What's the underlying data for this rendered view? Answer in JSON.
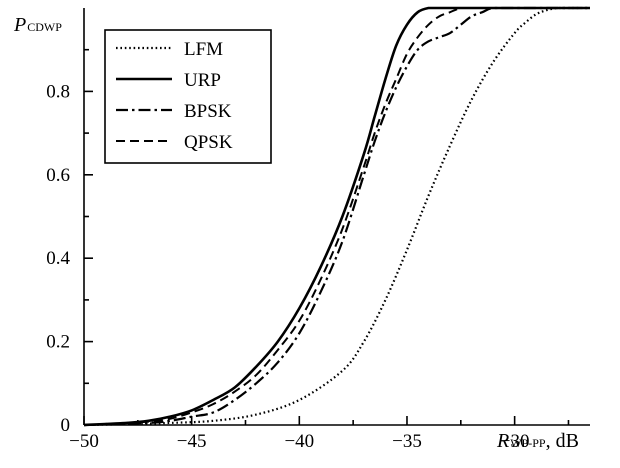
{
  "chart_data": {
    "type": "line",
    "title": "",
    "ylabel": {
      "main": "P",
      "sub": "CDWP"
    },
    "xlabel": {
      "main": "R",
      "sub": "WP-PP",
      "unit": ", dB"
    },
    "xlim": [
      -50,
      -26.5
    ],
    "ylim": [
      0,
      1.0
    ],
    "x_ticks": [
      -50,
      -45,
      -40,
      -35,
      -30
    ],
    "x_tick_labels": [
      "−50",
      "−45",
      "−40",
      "−35",
      "−30"
    ],
    "y_ticks": [
      0,
      0.2,
      0.4,
      0.6,
      0.8
    ],
    "y_tick_labels": [
      "0",
      "0.2",
      "0.4",
      "0.6",
      "0.8"
    ],
    "grid": false,
    "legend": "top-left",
    "series": [
      {
        "name": "LFM",
        "style": "dotted",
        "x": [
          -50,
          -48,
          -46,
          -44,
          -42,
          -40,
          -38,
          -37,
          -36,
          -35,
          -34,
          -33,
          -32,
          -31,
          -30,
          -29.5,
          -29,
          -28.5,
          -28,
          -27.5,
          -27,
          -26.5
        ],
        "y": [
          0,
          0.002,
          0.005,
          0.01,
          0.025,
          0.06,
          0.13,
          0.2,
          0.3,
          0.42,
          0.55,
          0.67,
          0.78,
          0.87,
          0.94,
          0.965,
          0.985,
          0.995,
          1.0,
          1.0,
          1.0,
          1.0
        ]
      },
      {
        "name": "URP",
        "style": "solid",
        "x": [
          -50,
          -48,
          -47,
          -46,
          -45,
          -44,
          -43,
          -42,
          -41,
          -40,
          -39,
          -38,
          -37,
          -36.5,
          -36,
          -35.5,
          -35,
          -34.5,
          -34,
          -33.5,
          -33,
          -32,
          -30,
          -28,
          -26.5
        ],
        "y": [
          0,
          0.005,
          0.01,
          0.02,
          0.035,
          0.06,
          0.09,
          0.14,
          0.2,
          0.28,
          0.38,
          0.5,
          0.65,
          0.74,
          0.83,
          0.91,
          0.96,
          0.99,
          1.0,
          1.0,
          1.0,
          1.0,
          1.0,
          1.0,
          1.0
        ]
      },
      {
        "name": "BPSK",
        "style": "dashdot",
        "x": [
          -50,
          -47,
          -46,
          -45,
          -44,
          -43,
          -42,
          -41,
          -40,
          -39,
          -38,
          -37,
          -36.5,
          -36,
          -35.5,
          -35,
          -34.5,
          -34,
          -33.5,
          -33,
          -32.5,
          -32,
          -31.5,
          -31,
          -30,
          -28,
          -26.5
        ],
        "y": [
          0,
          0.005,
          0.01,
          0.02,
          0.03,
          0.06,
          0.1,
          0.15,
          0.22,
          0.32,
          0.44,
          0.6,
          0.68,
          0.75,
          0.81,
          0.86,
          0.9,
          0.92,
          0.93,
          0.94,
          0.96,
          0.98,
          0.99,
          1.0,
          1.0,
          1.0,
          1.0
        ]
      },
      {
        "name": "QPSK",
        "style": "dashed",
        "x": [
          -50,
          -47,
          -46,
          -45,
          -44,
          -43,
          -42,
          -41,
          -40,
          -39,
          -38,
          -37,
          -36.5,
          -36,
          -35.5,
          -35,
          -34.5,
          -34,
          -33.5,
          -33,
          -32.5,
          -32,
          -31,
          -30,
          -28,
          -26.5
        ],
        "y": [
          0,
          0.008,
          0.015,
          0.03,
          0.05,
          0.08,
          0.12,
          0.18,
          0.25,
          0.35,
          0.47,
          0.62,
          0.7,
          0.77,
          0.83,
          0.89,
          0.93,
          0.96,
          0.98,
          0.99,
          1.0,
          1.0,
          1.0,
          1.0,
          1.0,
          1.0
        ]
      }
    ]
  }
}
